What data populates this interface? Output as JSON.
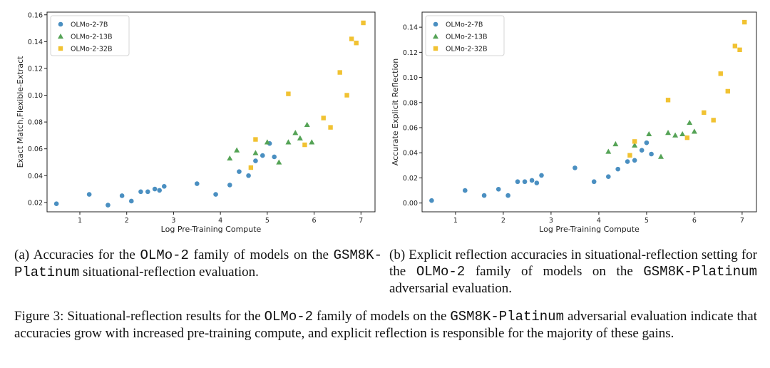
{
  "colors": {
    "OLMo-2-7B": "#4a8fc1",
    "OLMo-2-13B": "#55a356",
    "OLMo-2-32B": "#f1c232"
  },
  "chart_data": [
    {
      "type": "scatter",
      "xlabel": "Log Pre-Training Compute",
      "ylabel": "Exact Match,Flexible-Extract",
      "xlim": [
        0.3,
        7.3
      ],
      "ylim": [
        0.013,
        0.162
      ],
      "xticks": [
        "1",
        "2",
        "3",
        "4",
        "5",
        "6",
        "7"
      ],
      "yticks": [
        "0.02",
        "0.04",
        "0.06",
        "0.08",
        "0.10",
        "0.12",
        "0.14",
        "0.16"
      ],
      "legend_position": "top-left",
      "series": [
        {
          "name": "OLMo-2-7B",
          "marker": "circle",
          "points": [
            [
              0.5,
              0.019
            ],
            [
              1.2,
              0.026
            ],
            [
              1.6,
              0.018
            ],
            [
              1.9,
              0.025
            ],
            [
              2.1,
              0.021
            ],
            [
              2.3,
              0.028
            ],
            [
              2.45,
              0.028
            ],
            [
              2.6,
              0.03
            ],
            [
              2.7,
              0.029
            ],
            [
              2.8,
              0.032
            ],
            [
              3.5,
              0.034
            ],
            [
              3.9,
              0.026
            ],
            [
              4.2,
              0.033
            ],
            [
              4.4,
              0.043
            ],
            [
              4.6,
              0.04
            ],
            [
              4.75,
              0.051
            ],
            [
              4.9,
              0.055
            ],
            [
              5.05,
              0.064
            ],
            [
              5.15,
              0.054
            ]
          ]
        },
        {
          "name": "OLMo-2-13B",
          "marker": "triangle",
          "points": [
            [
              4.2,
              0.053
            ],
            [
              4.35,
              0.059
            ],
            [
              4.75,
              0.057
            ],
            [
              5.0,
              0.065
            ],
            [
              5.25,
              0.05
            ],
            [
              5.45,
              0.065
            ],
            [
              5.6,
              0.072
            ],
            [
              5.7,
              0.068
            ],
            [
              5.85,
              0.078
            ],
            [
              5.95,
              0.065
            ]
          ]
        },
        {
          "name": "OLMo-2-32B",
          "marker": "square",
          "points": [
            [
              4.65,
              0.046
            ],
            [
              4.75,
              0.067
            ],
            [
              5.45,
              0.101
            ],
            [
              5.8,
              0.063
            ],
            [
              6.2,
              0.083
            ],
            [
              6.35,
              0.076
            ],
            [
              6.55,
              0.117
            ],
            [
              6.7,
              0.1
            ],
            [
              6.8,
              0.142
            ],
            [
              6.9,
              0.139
            ],
            [
              7.05,
              0.154
            ]
          ]
        }
      ]
    },
    {
      "type": "scatter",
      "xlabel": "Log Pre-Training Compute",
      "ylabel": "Accurate Explicit Reflection",
      "xlim": [
        0.3,
        7.3
      ],
      "ylim": [
        -0.007,
        0.152
      ],
      "xticks": [
        "1",
        "2",
        "3",
        "4",
        "5",
        "6",
        "7"
      ],
      "yticks": [
        "0.00",
        "0.02",
        "0.04",
        "0.06",
        "0.08",
        "0.10",
        "0.12",
        "0.14"
      ],
      "legend_position": "top-left",
      "series": [
        {
          "name": "OLMo-2-7B",
          "marker": "circle",
          "points": [
            [
              0.5,
              0.002
            ],
            [
              1.2,
              0.01
            ],
            [
              1.6,
              0.006
            ],
            [
              1.9,
              0.011
            ],
            [
              2.1,
              0.006
            ],
            [
              2.3,
              0.017
            ],
            [
              2.45,
              0.017
            ],
            [
              2.6,
              0.018
            ],
            [
              2.7,
              0.016
            ],
            [
              2.8,
              0.022
            ],
            [
              3.5,
              0.028
            ],
            [
              3.9,
              0.017
            ],
            [
              4.2,
              0.021
            ],
            [
              4.4,
              0.027
            ],
            [
              4.6,
              0.033
            ],
            [
              4.75,
              0.034
            ],
            [
              4.9,
              0.042
            ],
            [
              5.0,
              0.048
            ],
            [
              5.1,
              0.039
            ]
          ]
        },
        {
          "name": "OLMo-2-13B",
          "marker": "triangle",
          "points": [
            [
              4.2,
              0.041
            ],
            [
              4.35,
              0.047
            ],
            [
              4.75,
              0.046
            ],
            [
              5.05,
              0.055
            ],
            [
              5.3,
              0.037
            ],
            [
              5.45,
              0.056
            ],
            [
              5.6,
              0.054
            ],
            [
              5.75,
              0.055
            ],
            [
              5.9,
              0.064
            ],
            [
              6.0,
              0.057
            ]
          ]
        },
        {
          "name": "OLMo-2-32B",
          "marker": "square",
          "points": [
            [
              4.65,
              0.038
            ],
            [
              4.75,
              0.049
            ],
            [
              5.45,
              0.082
            ],
            [
              5.85,
              0.052
            ],
            [
              6.2,
              0.072
            ],
            [
              6.4,
              0.066
            ],
            [
              6.55,
              0.103
            ],
            [
              6.7,
              0.089
            ],
            [
              6.85,
              0.125
            ],
            [
              6.95,
              0.122
            ],
            [
              7.05,
              0.144
            ]
          ]
        }
      ]
    }
  ],
  "captions": {
    "a": {
      "prefix": "(a) Accuracies for the ",
      "model": "OLMo-2",
      "middle": " family of models on the ",
      "dataset": "GSM8K-Platinum",
      "suffix": " situational-reflection evaluation."
    },
    "b": {
      "prefix": "(b) Explicit reflection accuracies in situational-reflection setting for the ",
      "model": "OLMo-2",
      "middle": " family of models on the ",
      "dataset": "GSM8K-Platinum",
      "suffix": " adversarial evaluation."
    },
    "figure": {
      "prefix": "Figure 3: Situational-reflection results for the ",
      "model": "OLMo-2",
      "middle": " family of models on the ",
      "dataset": "GSM8K-Platinum",
      "suffix": " adversarial evaluation indicate that accuracies grow with increased pre-training compute, and explicit reflection is responsible for the majority of these gains."
    }
  }
}
